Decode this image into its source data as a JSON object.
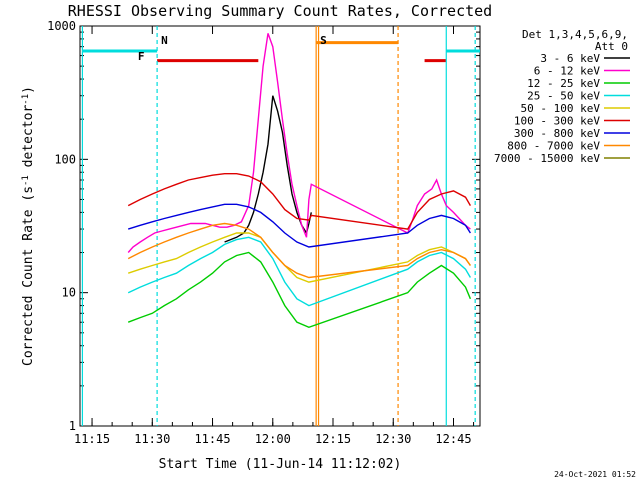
{
  "chart_data": {
    "type": "line",
    "title": "RHESSI Observing Summary Count Rates, Corrected",
    "xlabel": "Start Time (11-Jun-14 11:12:02)",
    "ylabel_main": "Corrected Count Rate (s",
    "ylabel_sup1": "-1",
    "ylabel_mid": " detector",
    "ylabel_sup2": "-1",
    "ylabel_end": ")",
    "yscale": "log",
    "xlim": [
      11.2,
      12.86
    ],
    "ylim": [
      1,
      1000
    ],
    "x_ticks": [
      {
        "value": 11.25,
        "label": "11:15"
      },
      {
        "value": 11.5,
        "label": "11:30"
      },
      {
        "value": 11.75,
        "label": "11:45"
      },
      {
        "value": 12.0,
        "label": "12:00"
      },
      {
        "value": 12.25,
        "label": "12:15"
      },
      {
        "value": 12.5,
        "label": "12:30"
      },
      {
        "value": 12.75,
        "label": "12:45"
      }
    ],
    "y_ticks": [
      {
        "value": 1,
        "label": "1"
      },
      {
        "value": 10,
        "label": "10"
      },
      {
        "value": 100,
        "label": "100"
      },
      {
        "value": 1000,
        "label": "1000"
      }
    ],
    "legend_header": [
      "Det 1,3,4,5,6,9,",
      "Att 0"
    ],
    "legend_position": "right",
    "series": [
      {
        "name": "3 - 6 keV",
        "color": "#000000",
        "x": [
          11.8,
          11.85,
          11.88,
          11.9,
          11.92,
          11.94,
          11.96,
          11.98,
          12.0,
          12.02,
          12.04,
          12.06,
          12.08,
          12.1,
          12.12,
          12.14,
          12.15,
          12.16
        ],
        "y": [
          24,
          26,
          28,
          32,
          40,
          55,
          80,
          130,
          300,
          230,
          160,
          90,
          55,
          40,
          32,
          28,
          33,
          40
        ]
      },
      {
        "name": "6 - 12 keV",
        "color": "#ff00cc",
        "x": [
          11.4,
          11.42,
          11.45,
          11.48,
          11.51,
          11.54,
          11.57,
          11.6,
          11.63,
          11.66,
          11.69,
          11.72,
          11.75,
          11.78,
          11.81,
          11.84,
          11.87,
          11.9,
          11.92,
          11.94,
          11.96,
          11.98,
          12.0,
          12.02,
          12.04,
          12.06,
          12.08,
          12.1,
          12.12,
          12.14,
          12.15,
          12.16,
          12.56,
          12.58,
          12.6,
          12.63,
          12.66,
          12.68,
          12.7,
          12.72,
          12.75,
          12.78,
          12.8,
          12.82
        ],
        "y": [
          20,
          22,
          24,
          26,
          28,
          29,
          30,
          31,
          32,
          33,
          33,
          33,
          32,
          31,
          31,
          32,
          34,
          45,
          80,
          200,
          500,
          880,
          700,
          380,
          200,
          110,
          65,
          45,
          32,
          26,
          50,
          65,
          28,
          35,
          45,
          55,
          60,
          70,
          55,
          45,
          40,
          35,
          32,
          30
        ]
      },
      {
        "name": "12 - 25 keV",
        "color": "#00cc00",
        "x": [
          11.4,
          11.45,
          11.5,
          11.55,
          11.6,
          11.65,
          11.7,
          11.75,
          11.8,
          11.85,
          11.9,
          11.95,
          12.0,
          12.05,
          12.1,
          12.15,
          12.56,
          12.6,
          12.65,
          12.7,
          12.75,
          12.8,
          12.82
        ],
        "y": [
          6,
          6.5,
          7,
          8,
          9,
          10.5,
          12,
          14,
          17,
          19,
          20,
          17,
          12,
          8,
          6,
          5.5,
          10,
          12,
          14,
          16,
          14,
          11,
          9
        ]
      },
      {
        "name": "25 - 50 keV",
        "color": "#00dddd",
        "x": [
          11.4,
          11.45,
          11.5,
          11.55,
          11.6,
          11.65,
          11.7,
          11.75,
          11.8,
          11.85,
          11.9,
          11.95,
          12.0,
          12.05,
          12.1,
          12.15,
          12.56,
          12.6,
          12.65,
          12.7,
          12.75,
          12.8,
          12.82
        ],
        "y": [
          10,
          11,
          12,
          13,
          14,
          16,
          18,
          20,
          23,
          25,
          26,
          24,
          18,
          12,
          9,
          8,
          15,
          17,
          19,
          20,
          18,
          15,
          13
        ]
      },
      {
        "name": "50 - 100 keV",
        "color": "#ddcc00",
        "x": [
          11.4,
          11.45,
          11.5,
          11.55,
          11.6,
          11.65,
          11.7,
          11.75,
          11.8,
          11.85,
          11.9,
          11.95,
          12.0,
          12.05,
          12.1,
          12.15,
          12.56,
          12.6,
          12.65,
          12.7,
          12.75,
          12.8,
          12.82
        ],
        "y": [
          14,
          15,
          16,
          17,
          18,
          20,
          22,
          24,
          26,
          28,
          28,
          26,
          20,
          16,
          13,
          12,
          17,
          19,
          21,
          22,
          20,
          18,
          16
        ]
      },
      {
        "name": "100 - 300 keV",
        "color": "#dd0000",
        "x": [
          11.4,
          11.45,
          11.5,
          11.55,
          11.6,
          11.65,
          11.7,
          11.75,
          11.8,
          11.85,
          11.9,
          11.95,
          12.0,
          12.05,
          12.1,
          12.15,
          12.16,
          12.56,
          12.6,
          12.65,
          12.7,
          12.75,
          12.8,
          12.82
        ],
        "y": [
          45,
          50,
          55,
          60,
          65,
          70,
          73,
          76,
          78,
          78,
          75,
          68,
          55,
          42,
          36,
          35,
          38,
          30,
          40,
          50,
          55,
          58,
          52,
          45
        ]
      },
      {
        "name": "300 - 800 keV",
        "color": "#0000dd",
        "x": [
          11.4,
          11.45,
          11.5,
          11.55,
          11.6,
          11.65,
          11.7,
          11.75,
          11.8,
          11.85,
          11.9,
          11.95,
          12.0,
          12.05,
          12.1,
          12.15,
          12.56,
          12.6,
          12.65,
          12.7,
          12.75,
          12.8,
          12.82
        ],
        "y": [
          30,
          32,
          34,
          36,
          38,
          40,
          42,
          44,
          46,
          46,
          44,
          40,
          34,
          28,
          24,
          22,
          28,
          32,
          36,
          38,
          36,
          32,
          28
        ]
      },
      {
        "name": "800 - 7000 keV",
        "color": "#ff8800",
        "x": [
          11.4,
          11.45,
          11.5,
          11.55,
          11.6,
          11.65,
          11.7,
          11.75,
          11.8,
          11.85,
          11.9,
          11.95,
          12.0,
          12.05,
          12.1,
          12.15,
          12.56,
          12.6,
          12.65,
          12.7,
          12.75,
          12.8,
          12.82
        ],
        "y": [
          18,
          20,
          22,
          24,
          26,
          28,
          30,
          32,
          33,
          32,
          30,
          26,
          20,
          16,
          14,
          13,
          16,
          18,
          20,
          21,
          20,
          18,
          16
        ]
      },
      {
        "name": "7000 - 15000 keV",
        "color": "#808000",
        "x": [],
        "y": []
      }
    ],
    "annotations": [
      {
        "label": "N",
        "x": 11.52,
        "color": "#00dddd"
      },
      {
        "label": "F",
        "x": 11.49,
        "color": "#dd0000"
      },
      {
        "label": "S",
        "x": 12.18,
        "color": "#ff8800"
      }
    ],
    "intervals": [
      {
        "kind": "cyan",
        "x0": 11.21,
        "x1": 11.52,
        "y": 650
      },
      {
        "kind": "red",
        "x0": 11.52,
        "x1": 11.94,
        "y": 550
      },
      {
        "kind": "orange",
        "x0": 12.18,
        "x1": 12.52,
        "y": 750
      },
      {
        "kind": "red",
        "x0": 12.63,
        "x1": 12.72,
        "y": 550
      },
      {
        "kind": "cyan",
        "x0": 12.72,
        "x1": 12.86,
        "y": 650
      }
    ],
    "timestamp": "24-Oct-2021 01:52"
  }
}
